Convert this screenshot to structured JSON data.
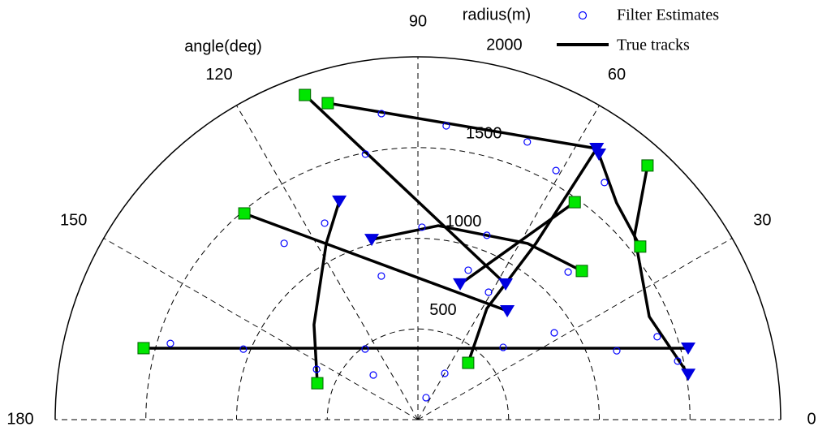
{
  "chart_data": {
    "type": "polar",
    "radial_axis_label": "radius(m)",
    "angular_axis_label": "angle(deg)",
    "rlim": [
      0,
      2000
    ],
    "rticks": [
      500,
      1000,
      1500,
      2000
    ],
    "thetalim": [
      0,
      180
    ],
    "thetaticks": [
      0,
      30,
      60,
      90,
      120,
      150,
      180
    ],
    "grid": true,
    "legend": "top-right",
    "start_marker_color": "#00e600",
    "end_marker_color": "#0000e0",
    "series": [
      {
        "name": "Filter Estimates",
        "type": "scatter",
        "color": "#0000ff",
        "theta": [
          69.7,
          135,
          59.9,
          32.5,
          71.4,
          162.9,
          158.0,
          126.8,
          40.3,
          19.1,
          96.8,
          84.5,
          68.5,
          101.2,
          88.8,
          69.5,
          61.0,
          44.5,
          127.2,
          104.3,
          51.8,
          19.1,
          12.7,
          153.6,
          115.4,
          61.0
        ],
        "r": [
          129,
          348,
          295,
          891,
          869,
          1428,
          1038,
          486,
          616,
          1160,
          1699,
          1627,
          1645,
          1492,
          1061,
          1085,
          1570,
          1161,
          1220,
          817,
          1663,
          1396,
          1468,
          624,
          1199,
          803
        ]
      },
      {
        "name": "True tracks",
        "type": "line",
        "color": "#000000",
        "tracks": [
          {
            "theta": [
              165.4,
              14.8
            ],
            "r": [
              1563,
              1541
            ]
          },
          {
            "theta": [
              105.9,
              56.6
            ],
            "r": [
              1814,
              1790
            ]
          },
          {
            "theta": [
              109.2,
              57.1
            ],
            "r": [
              1895,
              890
            ]
          },
          {
            "theta": [
              130.1,
              50.6
            ],
            "r": [
              1486,
              776
            ]
          },
          {
            "theta": [
              160.1,
              137.6,
              117.5,
              109.8
            ],
            "r": [
              590,
              776,
              1095,
              1280
            ]
          },
          {
            "theta": [
              42.2,
              58.1,
              84.0,
              104.4
            ],
            "r": [
              1220,
              1144,
              1075,
              1025
            ]
          },
          {
            "theta": [
              54.2,
              72.7
            ],
            "r": [
              1478,
              783
            ]
          },
          {
            "theta": [
              48.5,
              58.2,
              56.2,
              56.6
            ],
            "r": [
              418,
              721,
              1168,
              1790
            ]
          },
          {
            "theta": [
              37.9,
              47.5,
              55.7
            ],
            "r": [
              1553,
              1621,
              1771
            ]
          },
          {
            "theta": [
              47.9,
              40.4,
              24.0,
              9.5
            ],
            "r": [
              1888,
              1568,
              1396,
              1511
            ]
          }
        ]
      }
    ]
  }
}
